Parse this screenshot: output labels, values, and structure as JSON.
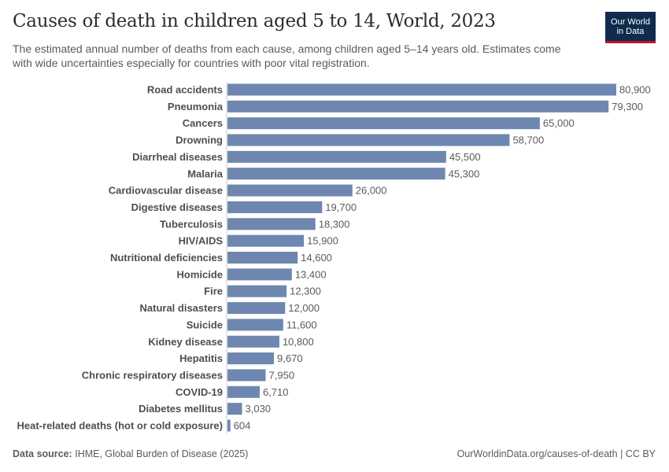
{
  "header": {
    "title": "Causes of death in children aged 5 to 14, World, 2023",
    "subtitle": "The estimated annual number of deaths from each cause, among children aged 5–14 years old. Estimates come with wide uncertainties especially for countries with poor vital registration.",
    "logo_line1": "Our World",
    "logo_line2": "in Data"
  },
  "footer": {
    "source_label": "Data source:",
    "source_text": "IHME, Global Burden of Disease (2025)",
    "link": "OurWorldinData.org/causes-of-death | CC BY"
  },
  "colors": {
    "bar": "#6d87b0",
    "label": "#4e4e4e",
    "value": "#5b5b5b",
    "logo_bg": "#0f2b4d",
    "logo_accent": "#c8102e"
  },
  "chart_data": {
    "type": "bar",
    "orientation": "horizontal",
    "categories": [
      "Road accidents",
      "Pneumonia",
      "Cancers",
      "Drowning",
      "Diarrheal diseases",
      "Malaria",
      "Cardiovascular disease",
      "Digestive diseases",
      "Tuberculosis",
      "HIV/AIDS",
      "Nutritional deficiencies",
      "Homicide",
      "Fire",
      "Natural disasters",
      "Suicide",
      "Kidney disease",
      "Hepatitis",
      "Chronic respiratory diseases",
      "COVID-19",
      "Diabetes mellitus",
      "Heat-related deaths (hot or cold exposure)"
    ],
    "values": [
      80900,
      79300,
      65000,
      58700,
      45500,
      45300,
      26000,
      19700,
      18300,
      15900,
      14600,
      13400,
      12300,
      12000,
      11600,
      10800,
      9670,
      7950,
      6710,
      3030,
      604
    ],
    "value_labels": [
      "80,900",
      "79,300",
      "65,000",
      "58,700",
      "45,500",
      "45,300",
      "26,000",
      "19,700",
      "18,300",
      "15,900",
      "14,600",
      "13,400",
      "12,300",
      "12,000",
      "11,600",
      "10,800",
      "9,670",
      "7,950",
      "6,710",
      "3,030",
      "604"
    ],
    "xlim": [
      0,
      80900
    ],
    "grid": false
  }
}
